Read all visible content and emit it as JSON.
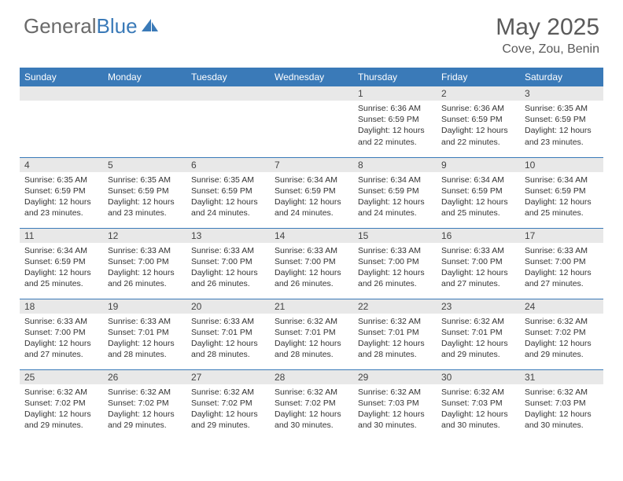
{
  "logo": {
    "word1": "General",
    "word2": "Blue",
    "icon_color": "#3a7ab8",
    "text_color": "#6a6a6a"
  },
  "title": "May 2025",
  "location": "Cove, Zou, Benin",
  "colors": {
    "header_bg": "#3a7ab8",
    "row_divider": "#3a7ab8",
    "daynum_bg": "#e8e8e8",
    "text": "#333333"
  },
  "day_headers": [
    "Sunday",
    "Monday",
    "Tuesday",
    "Wednesday",
    "Thursday",
    "Friday",
    "Saturday"
  ],
  "weeks": [
    [
      null,
      null,
      null,
      null,
      {
        "n": "1",
        "sunrise": "6:36 AM",
        "sunset": "6:59 PM",
        "daylight": "12 hours and 22 minutes."
      },
      {
        "n": "2",
        "sunrise": "6:36 AM",
        "sunset": "6:59 PM",
        "daylight": "12 hours and 22 minutes."
      },
      {
        "n": "3",
        "sunrise": "6:35 AM",
        "sunset": "6:59 PM",
        "daylight": "12 hours and 23 minutes."
      }
    ],
    [
      {
        "n": "4",
        "sunrise": "6:35 AM",
        "sunset": "6:59 PM",
        "daylight": "12 hours and 23 minutes."
      },
      {
        "n": "5",
        "sunrise": "6:35 AM",
        "sunset": "6:59 PM",
        "daylight": "12 hours and 23 minutes."
      },
      {
        "n": "6",
        "sunrise": "6:35 AM",
        "sunset": "6:59 PM",
        "daylight": "12 hours and 24 minutes."
      },
      {
        "n": "7",
        "sunrise": "6:34 AM",
        "sunset": "6:59 PM",
        "daylight": "12 hours and 24 minutes."
      },
      {
        "n": "8",
        "sunrise": "6:34 AM",
        "sunset": "6:59 PM",
        "daylight": "12 hours and 24 minutes."
      },
      {
        "n": "9",
        "sunrise": "6:34 AM",
        "sunset": "6:59 PM",
        "daylight": "12 hours and 25 minutes."
      },
      {
        "n": "10",
        "sunrise": "6:34 AM",
        "sunset": "6:59 PM",
        "daylight": "12 hours and 25 minutes."
      }
    ],
    [
      {
        "n": "11",
        "sunrise": "6:34 AM",
        "sunset": "6:59 PM",
        "daylight": "12 hours and 25 minutes."
      },
      {
        "n": "12",
        "sunrise": "6:33 AM",
        "sunset": "7:00 PM",
        "daylight": "12 hours and 26 minutes."
      },
      {
        "n": "13",
        "sunrise": "6:33 AM",
        "sunset": "7:00 PM",
        "daylight": "12 hours and 26 minutes."
      },
      {
        "n": "14",
        "sunrise": "6:33 AM",
        "sunset": "7:00 PM",
        "daylight": "12 hours and 26 minutes."
      },
      {
        "n": "15",
        "sunrise": "6:33 AM",
        "sunset": "7:00 PM",
        "daylight": "12 hours and 26 minutes."
      },
      {
        "n": "16",
        "sunrise": "6:33 AM",
        "sunset": "7:00 PM",
        "daylight": "12 hours and 27 minutes."
      },
      {
        "n": "17",
        "sunrise": "6:33 AM",
        "sunset": "7:00 PM",
        "daylight": "12 hours and 27 minutes."
      }
    ],
    [
      {
        "n": "18",
        "sunrise": "6:33 AM",
        "sunset": "7:00 PM",
        "daylight": "12 hours and 27 minutes."
      },
      {
        "n": "19",
        "sunrise": "6:33 AM",
        "sunset": "7:01 PM",
        "daylight": "12 hours and 28 minutes."
      },
      {
        "n": "20",
        "sunrise": "6:33 AM",
        "sunset": "7:01 PM",
        "daylight": "12 hours and 28 minutes."
      },
      {
        "n": "21",
        "sunrise": "6:32 AM",
        "sunset": "7:01 PM",
        "daylight": "12 hours and 28 minutes."
      },
      {
        "n": "22",
        "sunrise": "6:32 AM",
        "sunset": "7:01 PM",
        "daylight": "12 hours and 28 minutes."
      },
      {
        "n": "23",
        "sunrise": "6:32 AM",
        "sunset": "7:01 PM",
        "daylight": "12 hours and 29 minutes."
      },
      {
        "n": "24",
        "sunrise": "6:32 AM",
        "sunset": "7:02 PM",
        "daylight": "12 hours and 29 minutes."
      }
    ],
    [
      {
        "n": "25",
        "sunrise": "6:32 AM",
        "sunset": "7:02 PM",
        "daylight": "12 hours and 29 minutes."
      },
      {
        "n": "26",
        "sunrise": "6:32 AM",
        "sunset": "7:02 PM",
        "daylight": "12 hours and 29 minutes."
      },
      {
        "n": "27",
        "sunrise": "6:32 AM",
        "sunset": "7:02 PM",
        "daylight": "12 hours and 29 minutes."
      },
      {
        "n": "28",
        "sunrise": "6:32 AM",
        "sunset": "7:02 PM",
        "daylight": "12 hours and 30 minutes."
      },
      {
        "n": "29",
        "sunrise": "6:32 AM",
        "sunset": "7:03 PM",
        "daylight": "12 hours and 30 minutes."
      },
      {
        "n": "30",
        "sunrise": "6:32 AM",
        "sunset": "7:03 PM",
        "daylight": "12 hours and 30 minutes."
      },
      {
        "n": "31",
        "sunrise": "6:32 AM",
        "sunset": "7:03 PM",
        "daylight": "12 hours and 30 minutes."
      }
    ]
  ],
  "labels": {
    "sunrise": "Sunrise:",
    "sunset": "Sunset:",
    "daylight": "Daylight:"
  }
}
